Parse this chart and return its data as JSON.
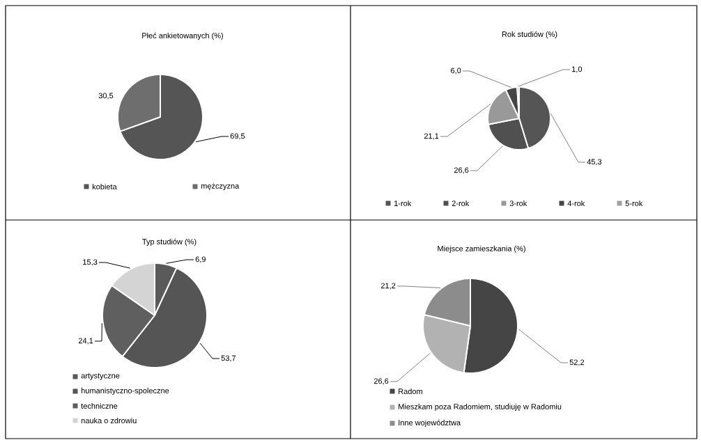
{
  "chart_data": [
    {
      "type": "pie",
      "title": "Płeć ankietowanych (%)",
      "categories": [
        "kobieta",
        "mężczyzna"
      ],
      "values": [
        69.5,
        30.5
      ],
      "colors": [
        "#555555",
        "#6e6e6e"
      ],
      "value_labels": [
        "69,5",
        "30,5"
      ],
      "legend": "bottom"
    },
    {
      "type": "pie",
      "title": "Rok studiów (%)",
      "categories": [
        "1-rok",
        "2-rok",
        "3-rok",
        "4-rok",
        "5-rok"
      ],
      "values": [
        45.3,
        26.6,
        21.1,
        6.0,
        1.0
      ],
      "colors": [
        "#555555",
        "#505050",
        "#999999",
        "#454545",
        "#a0a0a0"
      ],
      "value_labels": [
        "45,3",
        "26,6",
        "21,1",
        "6,0",
        "1,0"
      ],
      "legend": "bottom"
    },
    {
      "type": "pie",
      "title": "Typ studiów (%)",
      "categories": [
        "artystyczne",
        "humanistyczno-spoleczne",
        "techniczne",
        "nauka o zdrowiu"
      ],
      "values": [
        6.9,
        53.7,
        24.1,
        15.3
      ],
      "colors": [
        "#5a5a5a",
        "#555555",
        "#5f5f5f",
        "#d4d4d4"
      ],
      "value_labels": [
        "6,9",
        "53,7",
        "24,1",
        "15,3"
      ],
      "legend": "bottom"
    },
    {
      "type": "pie",
      "title": "Miejsce zamieszkania (%)",
      "categories": [
        "Radom",
        "Mieszkam poza Radomiem, studiuję w Radomiu",
        "Inne województwa"
      ],
      "values": [
        52.2,
        26.6,
        21.2
      ],
      "colors": [
        "#454545",
        "#b2b2b2",
        "#8c8c8c"
      ],
      "value_labels": [
        "52,2",
        "26,6",
        "21,2"
      ],
      "legend": "bottom"
    }
  ]
}
